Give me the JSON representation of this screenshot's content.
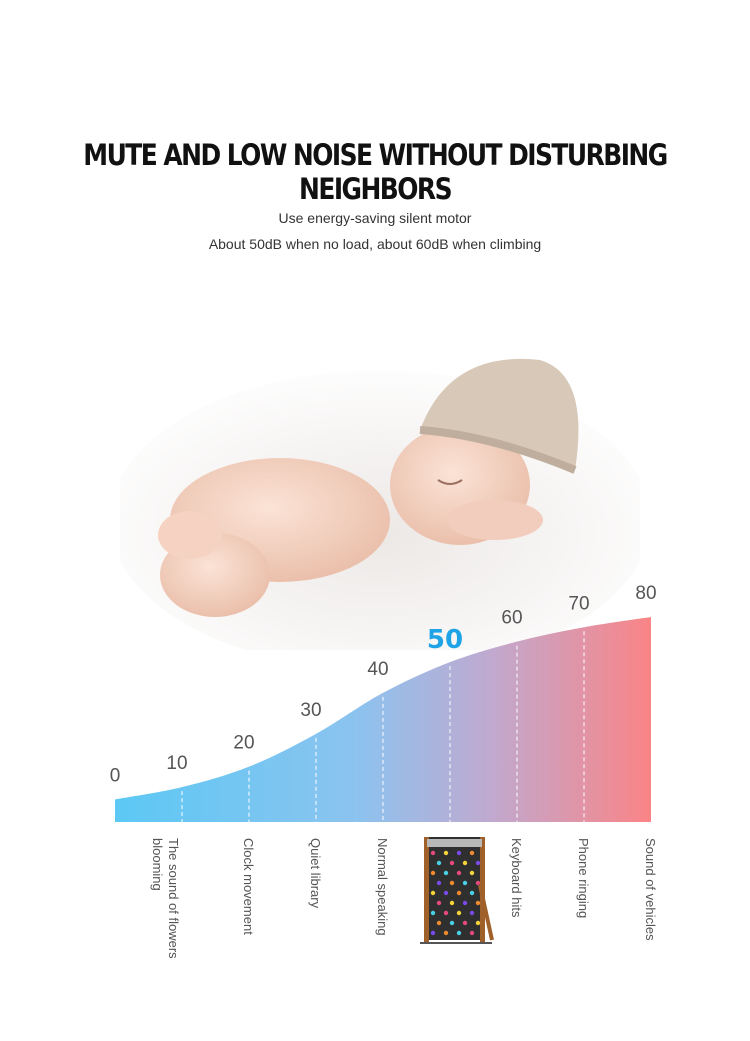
{
  "header": {
    "title": "MUTE AND LOW NOISE WITHOUT DISTURBING NEIGHBORS",
    "line1": "Use energy-saving silent motor",
    "line2": "About 50dB when no load, about 60dB when climbing"
  },
  "chart_data": {
    "type": "area",
    "x": [
      0,
      10,
      20,
      30,
      40,
      50,
      60,
      70,
      80
    ],
    "values": [
      0,
      10,
      20,
      30,
      40,
      50,
      60,
      70,
      80
    ],
    "data_labels": [
      "0",
      "10",
      "20",
      "30",
      "40",
      "50",
      "60",
      "70",
      "80"
    ],
    "highlight": "50",
    "categories": [
      {
        "x": 10,
        "label": "The sound of flowers blooming"
      },
      {
        "x": 20,
        "label": "Clock movement"
      },
      {
        "x": 30,
        "label": "Quiet library"
      },
      {
        "x": 40,
        "label": "Normal speaking"
      },
      {
        "x": 60,
        "label": "Keyboard hits"
      },
      {
        "x": 70,
        "label": "Phone ringing"
      },
      {
        "x": 80,
        "label": "Sound of vehicles"
      }
    ],
    "colors": {
      "low": "#5cc8f4",
      "mid": "#a9b4e0",
      "high": "#fa8486",
      "highlight": "#1ea4e6"
    },
    "grid": "dashed vertical"
  }
}
